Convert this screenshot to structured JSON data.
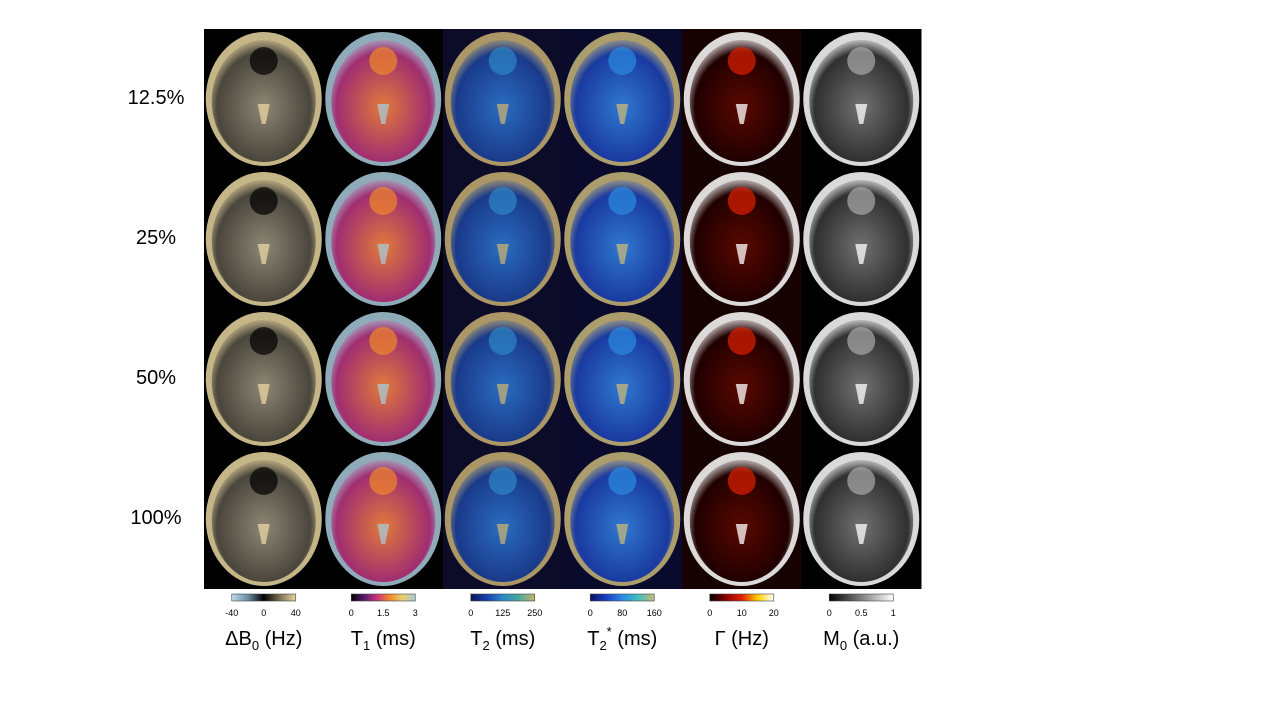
{
  "row_labels": [
    "12.5%",
    "25%",
    "50%",
    "100%"
  ],
  "columns": [
    {
      "label": {
        "main": "ΔB",
        "sub": "0",
        "unit": " (Hz)"
      },
      "colorbar_ticks": [
        "-40",
        "0",
        "40"
      ]
    },
    {
      "label": {
        "main": "T",
        "sub": "1",
        "unit": " (ms)"
      },
      "colorbar_ticks": [
        "0",
        "1.5",
        "3"
      ]
    },
    {
      "label": {
        "main": "T",
        "sub": "2",
        "unit": " (ms)"
      },
      "colorbar_ticks": [
        "0",
        "125",
        "250"
      ]
    },
    {
      "label": {
        "main": "T",
        "sub": "2",
        "sup": "*",
        "unit": " (ms)"
      },
      "colorbar_ticks": [
        "0",
        "80",
        "160"
      ]
    },
    {
      "label": {
        "main": "Γ",
        "unit": " (Hz)"
      },
      "colorbar_ticks": [
        "0",
        "10",
        "20"
      ]
    },
    {
      "label": {
        "main": "M",
        "sub": "0",
        "unit": " (a.u.)"
      },
      "colorbar_ticks": [
        "0",
        "0.5",
        "1"
      ]
    }
  ]
}
